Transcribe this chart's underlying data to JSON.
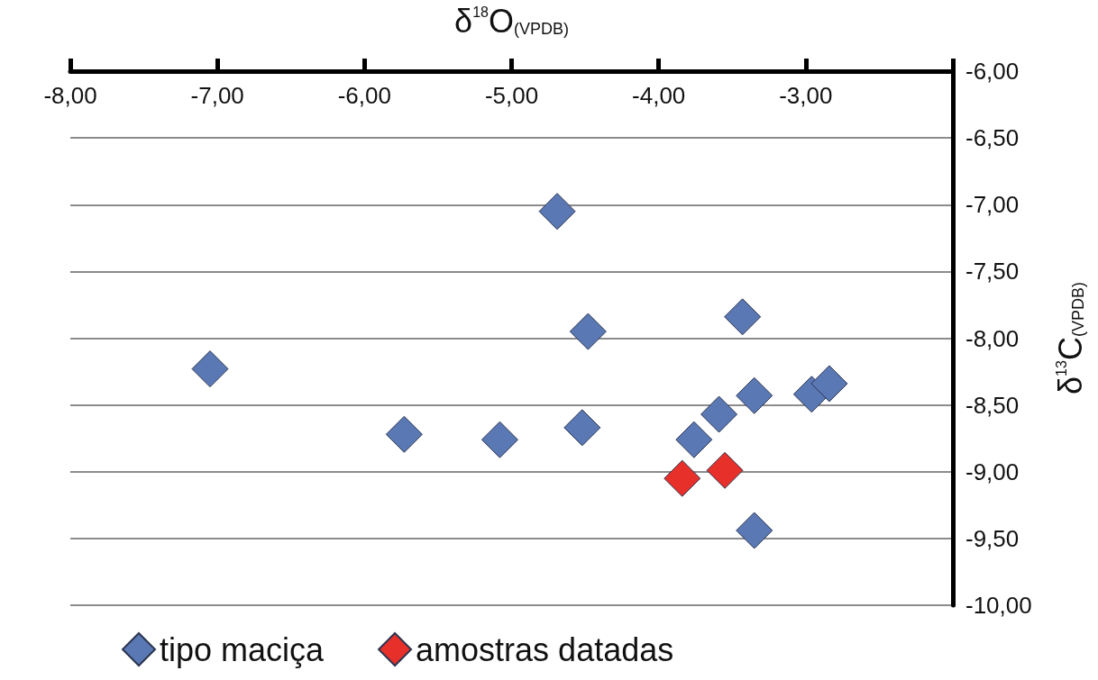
{
  "chart_data": {
    "type": "scatter",
    "xlabel": "δ$^{18}$O$_{(VPDB)}$",
    "ylabel": "δ$^{13}$C$_{(VPDB)}$",
    "xlim": [
      -8,
      -2
    ],
    "xticks": [
      {
        "value": -8,
        "label": "-8,00"
      },
      {
        "value": -7,
        "label": "-7,00"
      },
      {
        "value": -6,
        "label": "-6,00"
      },
      {
        "value": -5,
        "label": "-5,00"
      },
      {
        "value": -4,
        "label": "-4,00"
      },
      {
        "value": -3,
        "label": "-3,00"
      },
      {
        "value": -2,
        "label": null
      }
    ],
    "ylim": [
      -10,
      -6
    ],
    "yticks": [
      {
        "value": -10,
        "label": "-10,00"
      },
      {
        "value": -9.5,
        "label": "-9,50"
      },
      {
        "value": -9,
        "label": "-9,00"
      },
      {
        "value": -8.5,
        "label": "-8,50"
      },
      {
        "value": -8,
        "label": "-8,00"
      },
      {
        "value": -7.5,
        "label": "-7,50"
      },
      {
        "value": -7,
        "label": "-7,00"
      },
      {
        "value": -6.5,
        "label": "-6,50"
      },
      {
        "value": -6,
        "label": "-6,00"
      }
    ],
    "grid": "y",
    "legend": "bottom",
    "marker": "diamond",
    "series": [
      {
        "name": "tipo maciça",
        "color": "#5a78b4",
        "x": [
          -7.05,
          -5.73,
          -5.08,
          -4.69,
          -4.48,
          -4.52,
          -3.43,
          -3.35,
          -3.59,
          -3.76,
          -2.96,
          -2.84,
          -3.35
        ],
        "values": [
          -8.23,
          -8.72,
          -8.76,
          -7.05,
          -7.95,
          -8.67,
          -7.84,
          -8.43,
          -8.57,
          -8.76,
          -8.42,
          -8.34,
          -9.44
        ]
      },
      {
        "name": "amostras datadas",
        "color": "#e8302a",
        "x": [
          -3.84,
          -3.55
        ],
        "values": [
          -9.05,
          -8.99
        ]
      }
    ]
  }
}
